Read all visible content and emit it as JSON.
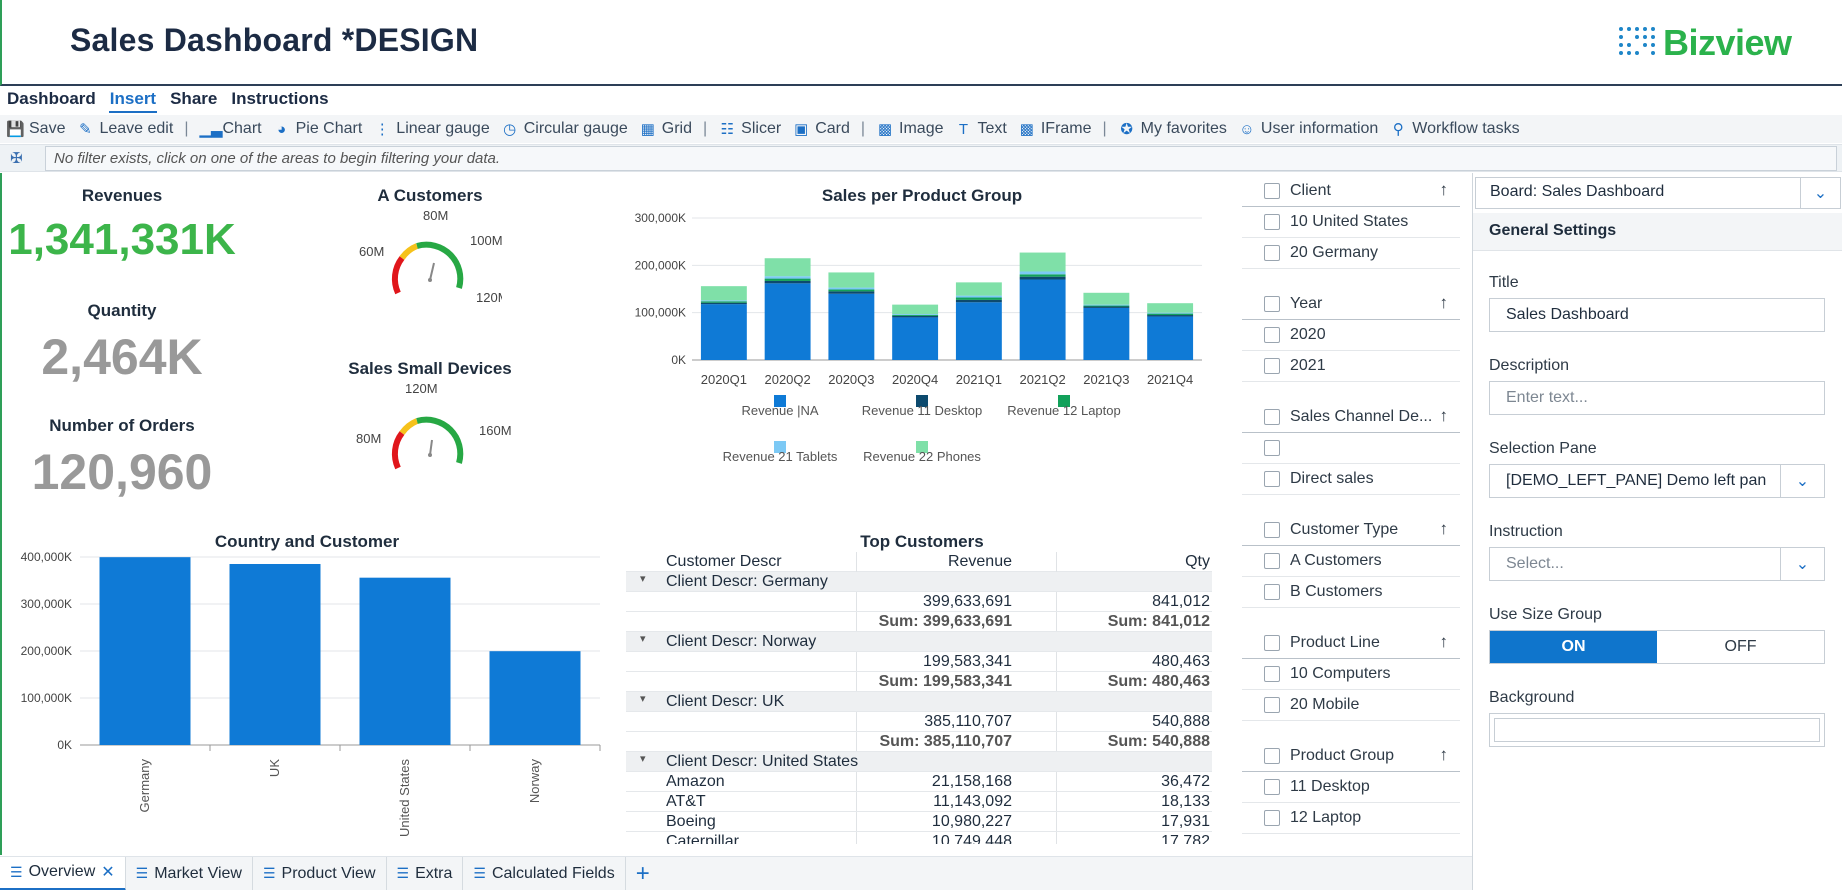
{
  "header": {
    "title": "Sales Dashboard *DESIGN",
    "logo_text": "Bizview"
  },
  "menu": [
    "Dashboard",
    "Insert",
    "Share",
    "Instructions"
  ],
  "toolbar": {
    "save": "Save",
    "leave_edit": "Leave edit",
    "chart": "Chart",
    "pie_chart": "Pie Chart",
    "linear_gauge": "Linear gauge",
    "circular_gauge": "Circular gauge",
    "grid": "Grid",
    "slicer": "Slicer",
    "card": "Card",
    "image": "Image",
    "text": "Text",
    "iframe": "IFrame",
    "favorites": "My favorites",
    "user_info": "User information",
    "workflow": "Workflow tasks"
  },
  "filter": {
    "message": "No filter exists, click on one of the areas to begin filtering your data."
  },
  "kpis": {
    "revenues": {
      "title": "Revenues",
      "value": "1,341,331K",
      "color": "#3cb54a"
    },
    "quantity": {
      "title": "Quantity",
      "value": "2,464K",
      "color": "#999999"
    },
    "orders": {
      "title": "Number of Orders",
      "value": "120,960",
      "color": "#999999"
    }
  },
  "gauges": {
    "a_customers": {
      "title": "A Customers",
      "labels": [
        "60M",
        "80M",
        "100M",
        "120M"
      ]
    },
    "small_devices": {
      "title": "Sales Small Devices",
      "labels": [
        "80M",
        "120M",
        "160M"
      ]
    }
  },
  "chart_data": [
    {
      "type": "bar",
      "title": "Sales per Product Group",
      "stacked": true,
      "categories": [
        "2020Q1",
        "2020Q2",
        "2020Q3",
        "2020Q4",
        "2021Q1",
        "2021Q2",
        "2021Q3",
        "2021Q4"
      ],
      "ylim": [
        0,
        300000
      ],
      "yticks": [
        "0K",
        "100,000K",
        "200,000K",
        "300,000K"
      ],
      "series": [
        {
          "name": "Revenue |NA",
          "color": "#0f7ad6",
          "values": [
            118000,
            162000,
            140000,
            90000,
            122000,
            170000,
            110000,
            92000
          ]
        },
        {
          "name": "Revenue 11 Desktop",
          "color": "#0d4a6e",
          "values": [
            3000,
            5000,
            5000,
            3000,
            5000,
            6000,
            3000,
            3000
          ]
        },
        {
          "name": "Revenue 12 Laptop",
          "color": "#12a15a",
          "values": [
            3000,
            5000,
            4000,
            2000,
            5000,
            5000,
            2000,
            3000
          ]
        },
        {
          "name": "Revenue 21 Tablets",
          "color": "#7cc9f5",
          "values": [
            2000,
            5000,
            4000,
            2000,
            4000,
            6000,
            2000,
            2000
          ]
        },
        {
          "name": "Revenue 22 Phones",
          "color": "#7fe0a8",
          "values": [
            30000,
            38000,
            32000,
            20000,
            28000,
            40000,
            25000,
            20000
          ]
        }
      ],
      "legend": "bottom"
    },
    {
      "type": "bar",
      "title": "Country and Customer",
      "categories": [
        "Germany",
        "UK",
        "United States",
        "Norway"
      ],
      "values": [
        399633,
        385110,
        356000,
        199583
      ],
      "ylim": [
        0,
        400000
      ],
      "yticks": [
        "0K",
        "100,000K",
        "200,000K",
        "300,000K",
        "400,000K"
      ],
      "color": "#0f7ad6"
    }
  ],
  "top_customers": {
    "title": "Top Customers",
    "columns": [
      "Customer Descr",
      "Revenue",
      "Qty"
    ],
    "rows": [
      {
        "kind": "group",
        "label": "Client Descr: Germany"
      },
      {
        "kind": "data",
        "name": "",
        "revenue": "399,633,691",
        "qty": "841,012"
      },
      {
        "kind": "sum",
        "name": "",
        "revenue": "Sum: 399,633,691",
        "qty": "Sum: 841,012"
      },
      {
        "kind": "group",
        "label": "Client Descr: Norway"
      },
      {
        "kind": "data",
        "name": "",
        "revenue": "199,583,341",
        "qty": "480,463"
      },
      {
        "kind": "sum",
        "name": "",
        "revenue": "Sum: 199,583,341",
        "qty": "Sum: 480,463"
      },
      {
        "kind": "group",
        "label": "Client Descr: UK"
      },
      {
        "kind": "data",
        "name": "",
        "revenue": "385,110,707",
        "qty": "540,888"
      },
      {
        "kind": "sum",
        "name": "",
        "revenue": "Sum: 385,110,707",
        "qty": "Sum: 540,888"
      },
      {
        "kind": "group",
        "label": "Client Descr: United States"
      },
      {
        "kind": "data",
        "name": "Amazon",
        "revenue": "21,158,168",
        "qty": "36,472"
      },
      {
        "kind": "data",
        "name": "AT&T",
        "revenue": "11,143,092",
        "qty": "18,133"
      },
      {
        "kind": "data",
        "name": "Boeing",
        "revenue": "10,980,227",
        "qty": "17,931"
      },
      {
        "kind": "data",
        "name": "Caterpillar",
        "revenue": "10,749,448",
        "qty": "17,782"
      }
    ]
  },
  "slicers": [
    {
      "kind": "head",
      "label": "Client"
    },
    {
      "kind": "item",
      "label": "10 United States"
    },
    {
      "kind": "item",
      "label": "20 Germany"
    },
    {
      "kind": "head",
      "label": "Year"
    },
    {
      "kind": "item",
      "label": "2020"
    },
    {
      "kind": "item",
      "label": "2021"
    },
    {
      "kind": "head",
      "label": "Sales Channel De..."
    },
    {
      "kind": "item",
      "label": ""
    },
    {
      "kind": "item",
      "label": "Direct sales"
    },
    {
      "kind": "head",
      "label": "Customer Type"
    },
    {
      "kind": "item",
      "label": "A Customers"
    },
    {
      "kind": "item",
      "label": "B Customers"
    },
    {
      "kind": "head",
      "label": "Product Line"
    },
    {
      "kind": "item",
      "label": "10 Computers"
    },
    {
      "kind": "item",
      "label": "20 Mobile"
    },
    {
      "kind": "head",
      "label": "Product Group"
    },
    {
      "kind": "item",
      "label": "11 Desktop"
    },
    {
      "kind": "item",
      "label": "12 Laptop"
    }
  ],
  "panel": {
    "board": "Board: Sales Dashboard",
    "section": "General Settings",
    "title_label": "Title",
    "title_value": "Sales Dashboard",
    "description_label": "Description",
    "description_placeholder": "Enter text...",
    "selection_label": "Selection Pane",
    "selection_value": "[DEMO_LEFT_PANE] Demo left pan",
    "instruction_label": "Instruction",
    "instruction_placeholder": "Select...",
    "size_group_label": "Use Size Group",
    "on": "ON",
    "off": "OFF",
    "background_label": "Background"
  },
  "tabs": [
    "Overview",
    "Market View",
    "Product View",
    "Extra",
    "Calculated Fields"
  ]
}
